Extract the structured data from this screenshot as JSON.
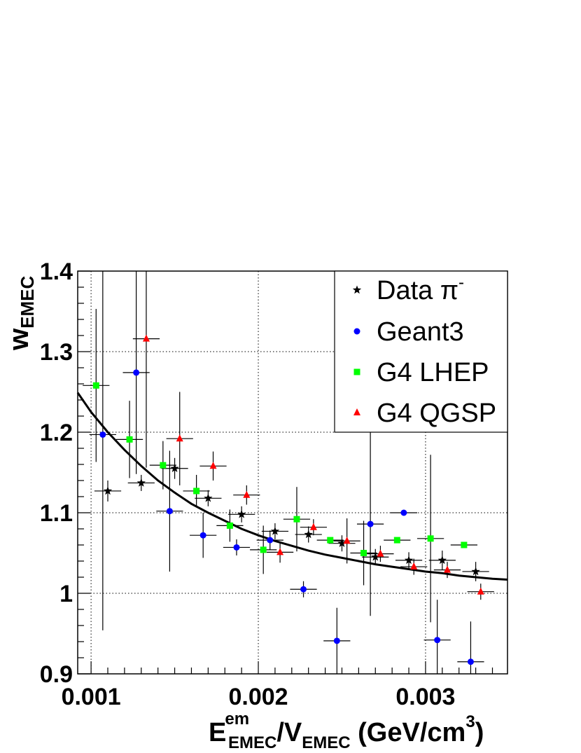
{
  "chart_data": {
    "type": "scatter",
    "xlim": [
      0.00092,
      0.00349
    ],
    "ylim": [
      0.9,
      1.4
    ],
    "x_ticks": [
      "0.001",
      "0.002",
      "0.003"
    ],
    "x_tick_values": [
      0.001,
      0.002,
      0.003
    ],
    "y_ticks": [
      "0.9",
      "1",
      "1.1",
      "1.2",
      "1.3",
      "1.4"
    ],
    "y_tick_values": [
      0.9,
      1.0,
      1.1,
      1.2,
      1.3,
      1.4
    ],
    "grid": true,
    "legend_position": "top-right",
    "ylabel": {
      "main": "w",
      "sub": "EMEC"
    },
    "xlabel": {
      "e": "E",
      "e_sup": "em",
      "e_sub": "EMEC",
      "slash_v": "/V",
      "v_sub": "EMEC",
      "units": " (GeV/cm",
      "units_sup": "3",
      "units_close": ")"
    },
    "series": [
      {
        "name": "Data π⁻",
        "name_base": "Data π",
        "name_sup": "-",
        "marker": "star",
        "color": "#000000",
        "points": [
          {
            "x": 0.0011,
            "y": 1.127,
            "xe": 8e-05,
            "ye": 0.013
          },
          {
            "x": 0.0013,
            "y": 1.137,
            "xe": 8e-05,
            "ye": 0.01
          },
          {
            "x": 0.0015,
            "y": 1.155,
            "xe": 8e-05,
            "ye": 0.013
          },
          {
            "x": 0.0017,
            "y": 1.118,
            "xe": 8e-05,
            "ye": 0.01
          },
          {
            "x": 0.0019,
            "y": 1.098,
            "xe": 8e-05,
            "ye": 0.01
          },
          {
            "x": 0.0021,
            "y": 1.077,
            "xe": 8e-05,
            "ye": 0.01
          },
          {
            "x": 0.0023,
            "y": 1.073,
            "xe": 8e-05,
            "ye": 0.01
          },
          {
            "x": 0.0025,
            "y": 1.062,
            "xe": 8e-05,
            "ye": 0.01
          },
          {
            "x": 0.0027,
            "y": 1.045,
            "xe": 8e-05,
            "ye": 0.01
          },
          {
            "x": 0.0029,
            "y": 1.041,
            "xe": 8e-05,
            "ye": 0.01
          },
          {
            "x": 0.0031,
            "y": 1.041,
            "xe": 8e-05,
            "ye": 0.012
          },
          {
            "x": 0.0033,
            "y": 1.027,
            "xe": 8e-05,
            "ye": 0.012
          }
        ]
      },
      {
        "name": "Geant3",
        "name_base": "Geant3",
        "name_sup": "",
        "marker": "circle",
        "color": "#0000ff",
        "points": [
          {
            "x": 0.00107,
            "y": 1.197,
            "xe": 8e-05,
            "ye": 0.243
          },
          {
            "x": 0.00127,
            "y": 1.274,
            "xe": 8e-05,
            "ye": 0.126
          },
          {
            "x": 0.00147,
            "y": 1.102,
            "xe": 8e-05,
            "ye": 0.075
          },
          {
            "x": 0.00167,
            "y": 1.072,
            "xe": 8e-05,
            "ye": 0.028
          },
          {
            "x": 0.00187,
            "y": 1.057,
            "xe": 8e-05,
            "ye": 0.01
          },
          {
            "x": 0.00207,
            "y": 1.066,
            "xe": 8e-05,
            "ye": 0.012
          },
          {
            "x": 0.00227,
            "y": 1.005,
            "xe": 8e-05,
            "ye": 0.01
          },
          {
            "x": 0.00247,
            "y": 0.941,
            "xe": 8e-05,
            "ye": 0.041
          },
          {
            "x": 0.00267,
            "y": 1.086,
            "xe": 8e-05,
            "ye": 0.114
          },
          {
            "x": 0.00287,
            "y": 1.1,
            "xe": 8e-05,
            "ye": 0.0
          },
          {
            "x": 0.00307,
            "y": 0.942,
            "xe": 8e-05,
            "ye": 0.05
          },
          {
            "x": 0.00327,
            "y": 0.915,
            "xe": 8e-05,
            "ye": 0.05
          }
        ]
      },
      {
        "name": "G4 LHEP",
        "name_base": "G4 LHEP",
        "name_sup": "",
        "marker": "square",
        "color": "#00ff00",
        "points": [
          {
            "x": 0.00103,
            "y": 1.258,
            "xe": 8e-05,
            "ye": 0.095
          },
          {
            "x": 0.00123,
            "y": 1.191,
            "xe": 8e-05,
            "ye": 0.048
          },
          {
            "x": 0.00143,
            "y": 1.159,
            "xe": 8e-05,
            "ye": 0.03
          },
          {
            "x": 0.00163,
            "y": 1.127,
            "xe": 8e-05,
            "ye": 0.02
          },
          {
            "x": 0.00183,
            "y": 1.084,
            "xe": 8e-05,
            "ye": 0.02
          },
          {
            "x": 0.00203,
            "y": 1.054,
            "xe": 8e-05,
            "ye": 0.03
          },
          {
            "x": 0.00223,
            "y": 1.092,
            "xe": 8e-05,
            "ye": 0.04
          },
          {
            "x": 0.00243,
            "y": 1.066,
            "xe": 8e-05,
            "ye": 0.0
          },
          {
            "x": 0.00263,
            "y": 1.05,
            "xe": 8e-05,
            "ye": 0.04
          },
          {
            "x": 0.00283,
            "y": 1.066,
            "xe": 8e-05,
            "ye": 0.0
          },
          {
            "x": 0.00303,
            "y": 1.068,
            "xe": 8e-05,
            "ye": 0.104
          },
          {
            "x": 0.00323,
            "y": 1.06,
            "xe": 8e-05,
            "ye": 0.0
          }
        ]
      },
      {
        "name": "G4 QGSP",
        "name_base": "G4 QGSP",
        "name_sup": "",
        "marker": "triangle",
        "color": "#ff0000",
        "points": [
          {
            "x": 0.00133,
            "y": 1.316,
            "xe": 8e-05,
            "ye": 0.16
          },
          {
            "x": 0.00153,
            "y": 1.192,
            "xe": 8e-05,
            "ye": 0.058
          },
          {
            "x": 0.00173,
            "y": 1.158,
            "xe": 8e-05,
            "ye": 0.018
          },
          {
            "x": 0.00193,
            "y": 1.122,
            "xe": 8e-05,
            "ye": 0.012
          },
          {
            "x": 0.00213,
            "y": 1.051,
            "xe": 8e-05,
            "ye": 0.013
          },
          {
            "x": 0.00233,
            "y": 1.082,
            "xe": 8e-05,
            "ye": 0.01
          },
          {
            "x": 0.00253,
            "y": 1.065,
            "xe": 8e-05,
            "ye": 0.028
          },
          {
            "x": 0.00273,
            "y": 1.049,
            "xe": 8e-05,
            "ye": 0.01
          },
          {
            "x": 0.00293,
            "y": 1.033,
            "xe": 8e-05,
            "ye": 0.01
          },
          {
            "x": 0.00313,
            "y": 1.029,
            "xe": 8e-05,
            "ye": 0.01
          },
          {
            "x": 0.00333,
            "y": 1.002,
            "xe": 8e-05,
            "ye": 0.01
          }
        ]
      }
    ],
    "fit_curve": {
      "x": [
        0.00092,
        0.001,
        0.0011,
        0.0012,
        0.0013,
        0.0014,
        0.0015,
        0.0016,
        0.0017,
        0.0018,
        0.0019,
        0.002,
        0.0021,
        0.0022,
        0.0023,
        0.0024,
        0.0025,
        0.0026,
        0.0027,
        0.0028,
        0.0029,
        0.003,
        0.0031,
        0.0032,
        0.0033,
        0.0034,
        0.00349
      ],
      "y": [
        1.249,
        1.225,
        1.2,
        1.178,
        1.158,
        1.14,
        1.125,
        1.111,
        1.1,
        1.09,
        1.08,
        1.072,
        1.065,
        1.059,
        1.053,
        1.048,
        1.044,
        1.04,
        1.036,
        1.033,
        1.03,
        1.027,
        1.025,
        1.022,
        1.02,
        1.018,
        1.017
      ]
    }
  }
}
